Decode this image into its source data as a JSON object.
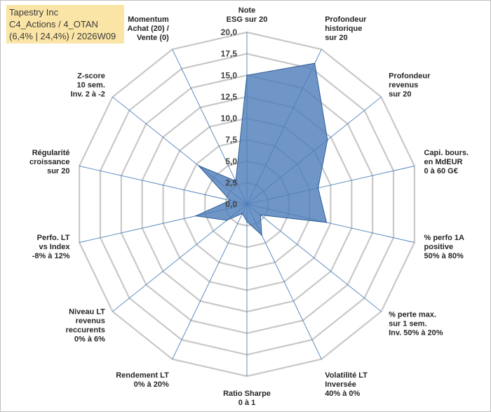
{
  "info": {
    "company": "Tapestry Inc",
    "portfolio": "C4_Actions / 4_OTAN",
    "stats": "(6,4% | 24,4%) / 2026W09"
  },
  "colors": {
    "grid": "#c8c8c8",
    "spoke": "#4f81bd",
    "fill": "#4f7fb9",
    "stroke": "#2f5d94",
    "info_bg": "#fbe5a6"
  },
  "chart_data": {
    "type": "radar",
    "title": "",
    "rmin": 0,
    "rmax": 20,
    "ticks": [
      0,
      2.5,
      5,
      7.5,
      10,
      12.5,
      15,
      17.5,
      20
    ],
    "tick_labels": [
      "0,0",
      "2,5",
      "5,0",
      "7,5",
      "10,0",
      "12,5",
      "15,0",
      "17,5",
      "20,0"
    ],
    "axes": [
      {
        "label": [
          "Note",
          "ESG sur 20"
        ],
        "value": 15.0
      },
      {
        "label": [
          "Profondeur",
          "historique",
          "sur 20"
        ],
        "value": 18.2
      },
      {
        "label": [
          "Profondeur",
          "revenus",
          "sur 20"
        ],
        "value": 12.0
      },
      {
        "label": [
          "Capi. bours.",
          "en MdEUR",
          "0 à 60 G€"
        ],
        "value": 8.5
      },
      {
        "label": [
          "% perfo 1A",
          "positive",
          "50% à 80%"
        ],
        "value": 9.5
      },
      {
        "label": [
          "% perte max.",
          "sur 1 sem.",
          "Inv. 50% à 20%"
        ],
        "value": 2.0
      },
      {
        "label": [
          "Volatilité LT",
          "Inversée",
          "40% à 0%"
        ],
        "value": 4.0
      },
      {
        "label": [
          "Ratio Sharpe",
          "0 à 1"
        ],
        "value": 2.0
      },
      {
        "label": [
          "Rendement LT",
          "0% à 20%"
        ],
        "value": 1.2
      },
      {
        "label": [
          "Niveau LT",
          "revenus",
          "reccurents",
          "0% à 6%"
        ],
        "value": 3.0
      },
      {
        "label": [
          "Perfo. LT",
          "vs Index",
          "-8% à 12%"
        ],
        "value": 6.1
      },
      {
        "label": [
          "Régularité",
          "croissance",
          "sur 20"
        ],
        "value": 2.0
      },
      {
        "label": [
          "Z-score",
          "10 sem.",
          "Inv. 2 à -2"
        ],
        "value": 7.2
      },
      {
        "label": [
          "Momentum",
          "Achat (20) /",
          "Vente (0)"
        ],
        "value": 3.0
      }
    ]
  }
}
